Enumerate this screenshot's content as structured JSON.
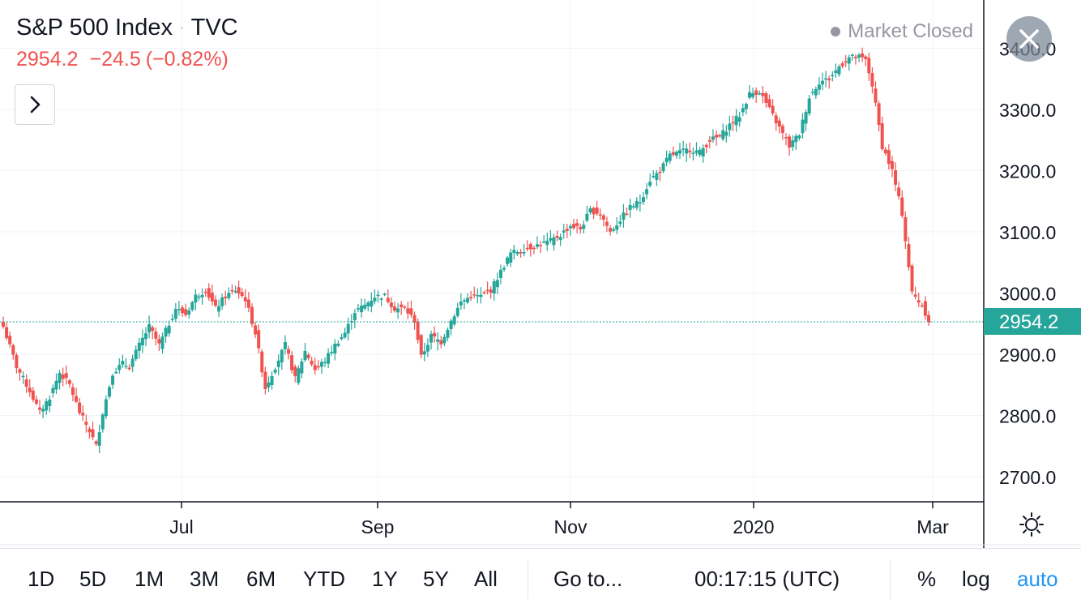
{
  "header": {
    "symbol_name": "S&P 500 Index",
    "separator": "·",
    "exchange": "TVC",
    "last": "2954.2",
    "change": "−24.5",
    "change_pct": "(−0.82%)"
  },
  "market_status": "Market Closed",
  "icons": {
    "expand": "chevron-right-icon",
    "close": "close-icon",
    "settings": "sun-settings-icon"
  },
  "colors": {
    "up": "#26a69a",
    "down": "#ef5350",
    "last_price_bg": "#26a69a"
  },
  "toolbar": {
    "ranges": [
      "1D",
      "5D",
      "1M",
      "3M",
      "6M",
      "YTD",
      "1Y",
      "5Y",
      "All"
    ],
    "goto": "Go to...",
    "clock": "00:17:15 (UTC)",
    "percent": "%",
    "log": "log",
    "auto": "auto"
  },
  "chart_data": {
    "type": "candlestick",
    "y_ticks": [
      "2700.0",
      "2800.0",
      "2900.0",
      "3000.0",
      "3100.0",
      "3200.0",
      "3300.0",
      "3400.0"
    ],
    "x_ticks": [
      "Jul",
      "Sep",
      "Nov",
      "2020",
      "Mar"
    ],
    "last_price_label": "2954.2",
    "last_price": 2954.2,
    "ylim": [
      2650,
      3450
    ],
    "grid": true,
    "close_path": [
      [
        0,
        2945
      ],
      [
        4,
        2880
      ],
      [
        8,
        2840
      ],
      [
        11,
        2805
      ],
      [
        14,
        2830
      ],
      [
        17,
        2870
      ],
      [
        20,
        2850
      ],
      [
        23,
        2805
      ],
      [
        26,
        2775
      ],
      [
        28,
        2750
      ],
      [
        30,
        2805
      ],
      [
        33,
        2870
      ],
      [
        36,
        2885
      ],
      [
        38,
        2880
      ],
      [
        41,
        2915
      ],
      [
        44,
        2945
      ],
      [
        47,
        2915
      ],
      [
        50,
        2950
      ],
      [
        52,
        2975
      ],
      [
        55,
        2965
      ],
      [
        58,
        2995
      ],
      [
        61,
        3005
      ],
      [
        64,
        2975
      ],
      [
        67,
        2995
      ],
      [
        70,
        3005
      ],
      [
        73,
        2990
      ],
      [
        76,
        2935
      ],
      [
        79,
        2845
      ],
      [
        82,
        2880
      ],
      [
        85,
        2915
      ],
      [
        88,
        2860
      ],
      [
        91,
        2905
      ],
      [
        94,
        2875
      ],
      [
        97,
        2890
      ],
      [
        100,
        2915
      ],
      [
        103,
        2935
      ],
      [
        106,
        2970
      ],
      [
        109,
        2980
      ],
      [
        112,
        2995
      ],
      [
        115,
        2995
      ],
      [
        118,
        2975
      ],
      [
        121,
        2975
      ],
      [
        124,
        2955
      ],
      [
        126,
        2895
      ],
      [
        129,
        2930
      ],
      [
        132,
        2920
      ],
      [
        135,
        2955
      ],
      [
        138,
        2985
      ],
      [
        141,
        2995
      ],
      [
        144,
        2995
      ],
      [
        147,
        3005
      ],
      [
        150,
        3035
      ],
      [
        153,
        3065
      ],
      [
        156,
        3070
      ],
      [
        159,
        3075
      ],
      [
        162,
        3080
      ],
      [
        165,
        3085
      ],
      [
        168,
        3095
      ],
      [
        171,
        3110
      ],
      [
        174,
        3105
      ],
      [
        177,
        3135
      ],
      [
        180,
        3130
      ],
      [
        183,
        3100
      ],
      [
        186,
        3120
      ],
      [
        189,
        3140
      ],
      [
        192,
        3150
      ],
      [
        195,
        3185
      ],
      [
        198,
        3200
      ],
      [
        201,
        3225
      ],
      [
        204,
        3230
      ],
      [
        207,
        3235
      ],
      [
        210,
        3230
      ],
      [
        213,
        3250
      ],
      [
        216,
        3255
      ],
      [
        219,
        3275
      ],
      [
        222,
        3290
      ],
      [
        225,
        3325
      ],
      [
        228,
        3330
      ],
      [
        231,
        3300
      ],
      [
        234,
        3270
      ],
      [
        237,
        3240
      ],
      [
        240,
        3260
      ],
      [
        243,
        3320
      ],
      [
        246,
        3345
      ],
      [
        249,
        3350
      ],
      [
        252,
        3370
      ],
      [
        255,
        3385
      ],
      [
        258,
        3385
      ],
      [
        260,
        3380
      ],
      [
        262,
        3340
      ],
      [
        265,
        3240
      ],
      [
        268,
        3200
      ],
      [
        271,
        3130
      ],
      [
        274,
        3000
      ],
      [
        277,
        2980
      ],
      [
        279,
        2955
      ]
    ]
  }
}
